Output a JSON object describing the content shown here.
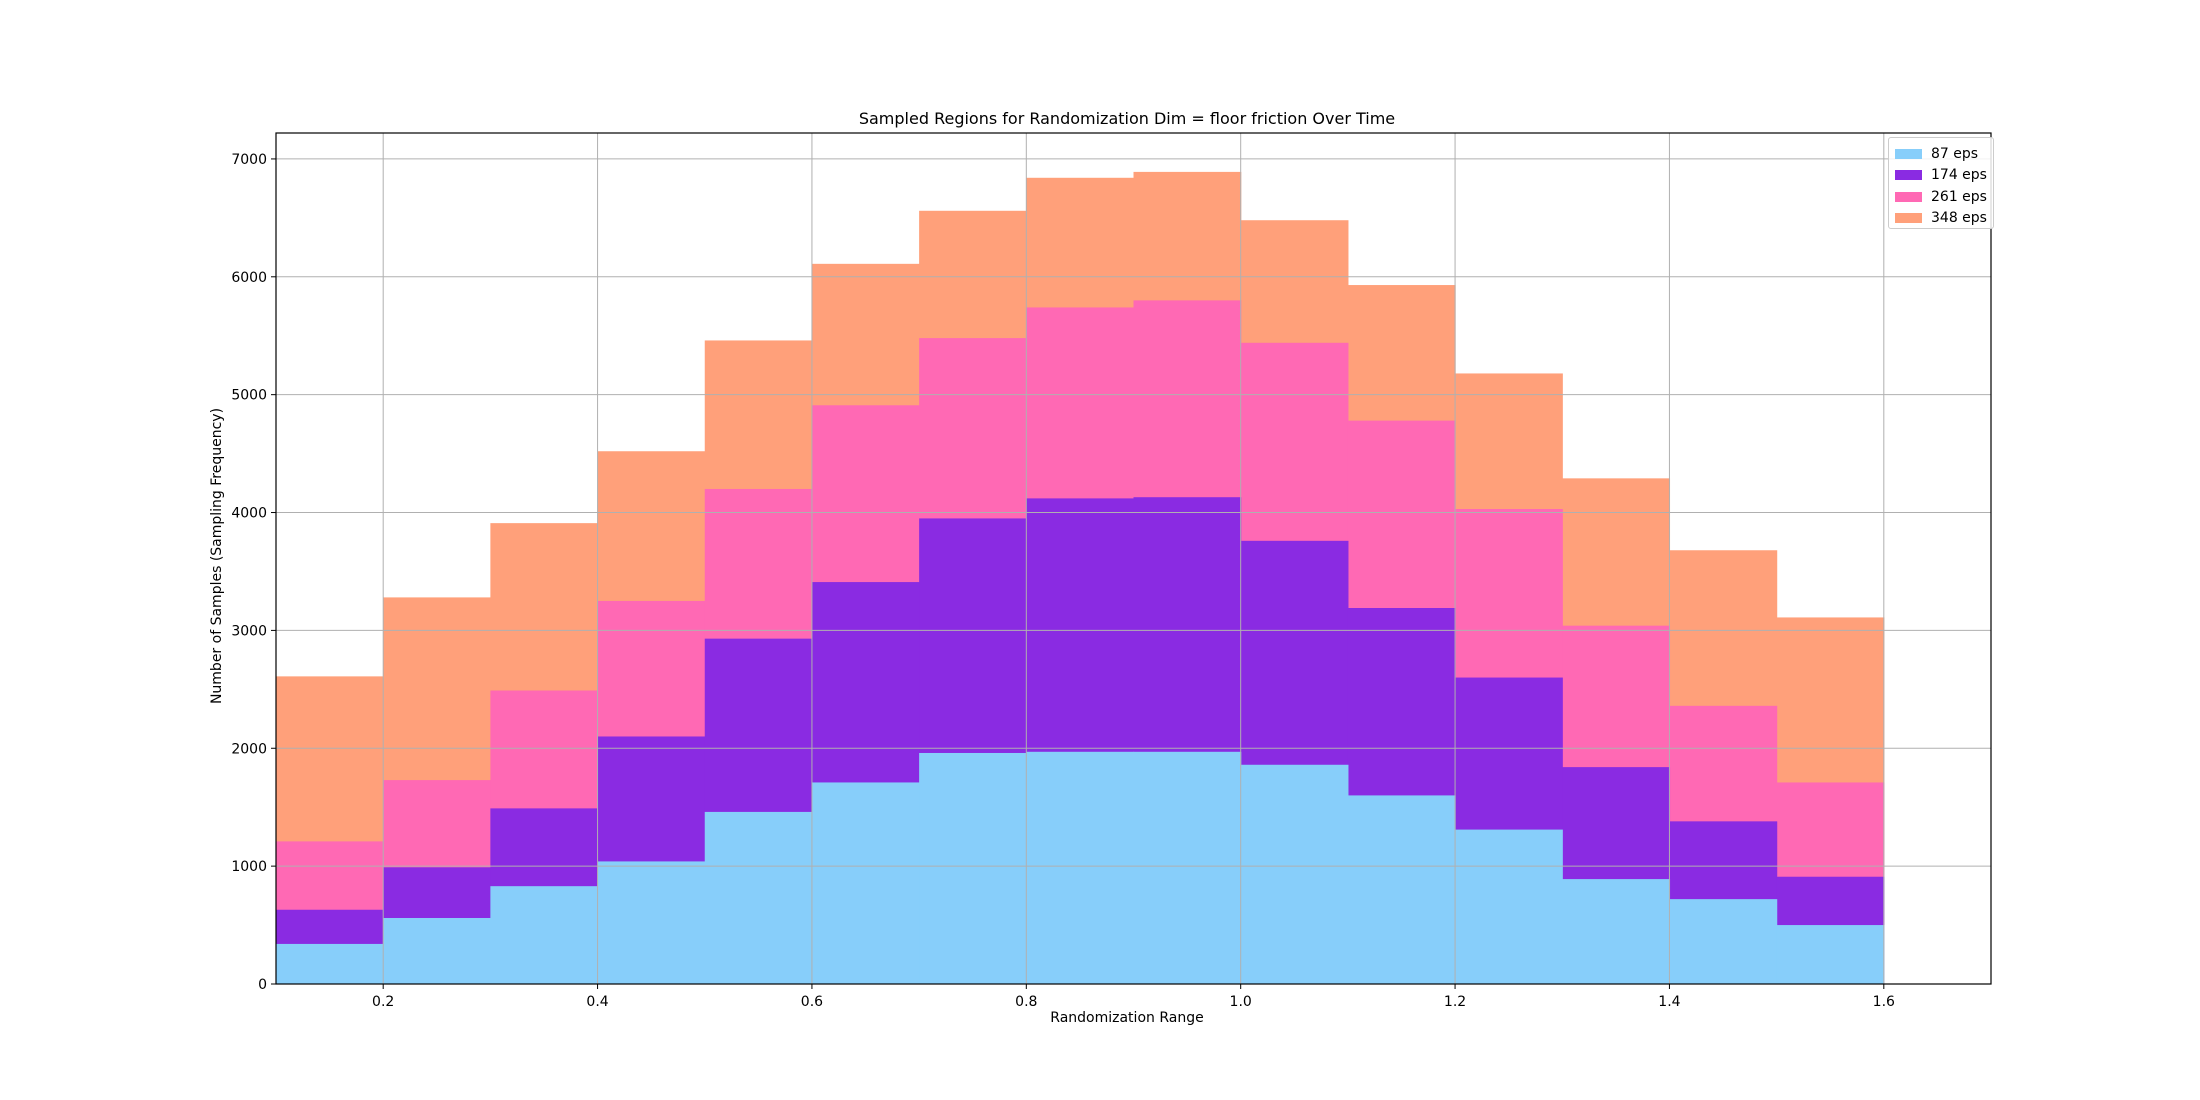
{
  "chart_data": {
    "type": "bar",
    "stacked": true,
    "title": "Sampled Regions for Randomization Dim = floor friction Over Time",
    "xlabel": "Randomization Range",
    "ylabel": "Number of Samples (Sampling Frequency)",
    "xlim": [
      0.1,
      1.7
    ],
    "ylim": [
      0,
      7220
    ],
    "xticks": [
      "0.2",
      "0.4",
      "0.6",
      "0.8",
      "1.0",
      "1.2",
      "1.4",
      "1.6"
    ],
    "yticks": [
      "0",
      "1000",
      "2000",
      "3000",
      "4000",
      "5000",
      "6000",
      "7000"
    ],
    "grid": true,
    "legend_position": "top-right",
    "bin_edges": [
      0.1,
      0.2,
      0.3,
      0.4,
      0.5,
      0.6,
      0.7,
      0.8,
      0.9,
      1.0,
      1.1,
      1.2,
      1.3,
      1.4,
      1.5,
      1.6
    ],
    "series": [
      {
        "name": "87 eps",
        "color": "#87CEFA",
        "cumulative": [
          340,
          560,
          830,
          1040,
          1460,
          1710,
          1960,
          1970,
          1970,
          1860,
          1600,
          1310,
          890,
          720,
          500
        ]
      },
      {
        "name": "174 eps",
        "color": "#8A2BE2",
        "cumulative": [
          630,
          990,
          1490,
          2100,
          2930,
          3410,
          3950,
          4120,
          4130,
          3760,
          3190,
          2600,
          1840,
          1380,
          910
        ]
      },
      {
        "name": "261 eps",
        "color": "#FF69B4",
        "cumulative": [
          1210,
          1730,
          2490,
          3250,
          4200,
          4910,
          5480,
          5740,
          5800,
          5440,
          4780,
          4030,
          3040,
          2360,
          1710
        ]
      },
      {
        "name": "348 eps",
        "color": "#FFA07A",
        "cumulative": [
          2610,
          3280,
          3910,
          4520,
          5460,
          6110,
          6560,
          6840,
          6890,
          6480,
          5930,
          5180,
          4290,
          3680,
          3110
        ]
      }
    ]
  }
}
